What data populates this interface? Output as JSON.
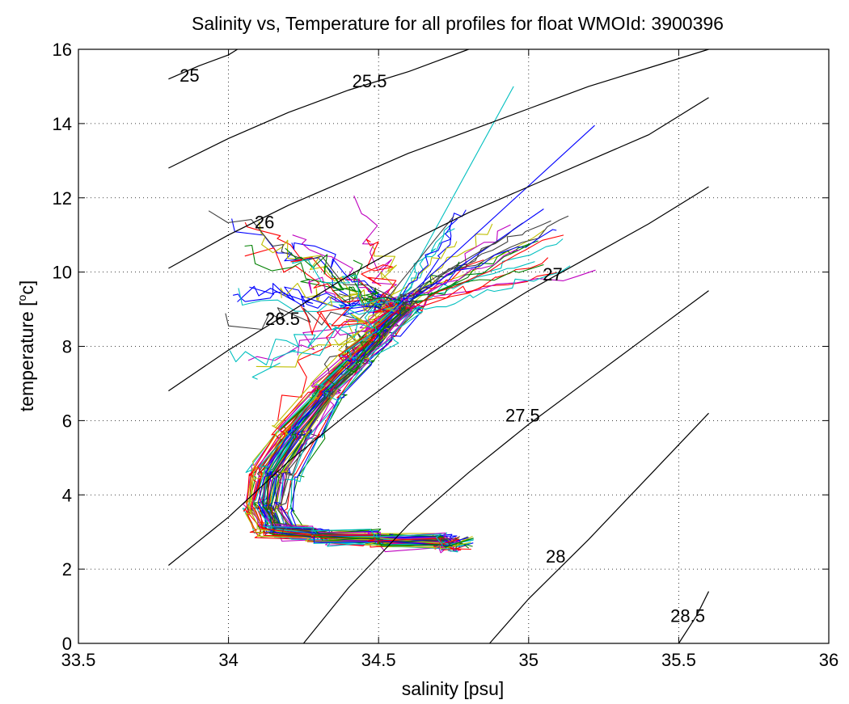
{
  "chart_data": {
    "type": "line",
    "title": "Salinity vs, Temperature for all profiles for float WMOId: 3900396",
    "xlabel": "salinity [psu]",
    "ylabel_main": "temperature [",
    "ylabel_sup": "o",
    "ylabel_tail": "c]",
    "xlim": [
      33.5,
      36
    ],
    "ylim": [
      0,
      16
    ],
    "xticks": [
      "33.5",
      "34",
      "34.5",
      "35",
      "35.5",
      "36"
    ],
    "yticks": [
      "0",
      "2",
      "4",
      "6",
      "8",
      "10",
      "12",
      "14",
      "16"
    ],
    "grid": "dotted",
    "isopycnals": [
      {
        "label": "25",
        "label_pos": [
          33.87,
          15.3
        ],
        "points": [
          [
            33.8,
            15.2
          ],
          [
            33.9,
            15.55
          ],
          [
            34.0,
            15.85
          ],
          [
            34.03,
            16.0
          ]
        ]
      },
      {
        "label": "25.5",
        "label_pos": [
          34.47,
          15.15
        ],
        "points": [
          [
            33.8,
            12.8
          ],
          [
            34.0,
            13.6
          ],
          [
            34.2,
            14.3
          ],
          [
            34.4,
            14.9
          ],
          [
            34.6,
            15.4
          ],
          [
            34.7,
            15.7
          ],
          [
            34.8,
            16.0
          ]
        ]
      },
      {
        "label": "26",
        "label_pos": [
          34.12,
          11.35
        ],
        "points": [
          [
            33.8,
            10.1
          ],
          [
            34.0,
            11.0
          ],
          [
            34.2,
            11.8
          ],
          [
            34.4,
            12.5
          ],
          [
            34.6,
            13.2
          ],
          [
            34.8,
            13.8
          ],
          [
            35.0,
            14.4
          ],
          [
            35.2,
            15.0
          ],
          [
            35.4,
            15.5
          ],
          [
            35.6,
            16.0
          ]
        ]
      },
      {
        "label": "26.5",
        "label_pos": [
          34.18,
          8.75
        ],
        "points": [
          [
            33.8,
            6.8
          ],
          [
            34.0,
            7.9
          ],
          [
            34.2,
            8.9
          ],
          [
            34.4,
            9.9
          ],
          [
            34.6,
            10.8
          ],
          [
            34.8,
            11.6
          ],
          [
            35.0,
            12.3
          ],
          [
            35.2,
            13.0
          ],
          [
            35.4,
            13.7
          ],
          [
            35.6,
            14.7
          ]
        ]
      },
      {
        "label": "27",
        "label_pos": [
          35.08,
          9.95
        ],
        "points": [
          [
            33.8,
            2.1
          ],
          [
            34.0,
            3.4
          ],
          [
            34.2,
            4.9
          ],
          [
            34.4,
            6.2
          ],
          [
            34.6,
            7.4
          ],
          [
            34.8,
            8.5
          ],
          [
            35.0,
            9.5
          ],
          [
            35.2,
            10.4
          ],
          [
            35.4,
            11.3
          ],
          [
            35.6,
            12.3
          ]
        ]
      },
      {
        "label": "27.5",
        "label_pos": [
          34.98,
          6.15
        ],
        "points": [
          [
            34.25,
            0.0
          ],
          [
            34.4,
            1.5
          ],
          [
            34.6,
            3.2
          ],
          [
            34.8,
            4.6
          ],
          [
            35.0,
            5.9
          ],
          [
            35.2,
            7.1
          ],
          [
            35.4,
            8.3
          ],
          [
            35.6,
            9.5
          ]
        ]
      },
      {
        "label": "28",
        "label_pos": [
          35.09,
          2.35
        ],
        "points": [
          [
            34.87,
            0.0
          ],
          [
            35.0,
            1.2
          ],
          [
            35.2,
            2.8
          ],
          [
            35.4,
            4.5
          ],
          [
            35.6,
            6.2
          ]
        ]
      },
      {
        "label": "28.5",
        "label_pos": [
          35.53,
          0.75
        ],
        "points": [
          [
            35.5,
            0.0
          ],
          [
            35.56,
            0.75
          ],
          [
            35.6,
            1.4
          ]
        ]
      }
    ],
    "profile_count": 60,
    "profile_colors": [
      "#0000ff",
      "#008000",
      "#ff0000",
      "#00bfbf",
      "#bf00bf",
      "#bfbf00",
      "#404040"
    ]
  }
}
